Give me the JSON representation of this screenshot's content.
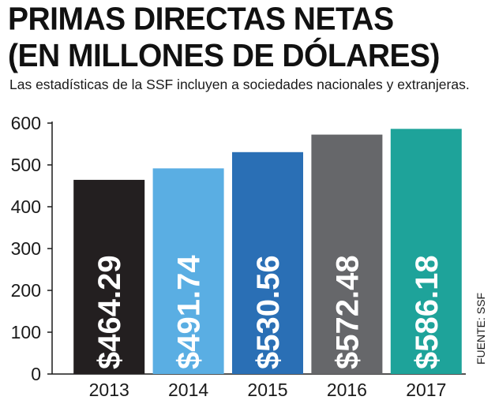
{
  "chart_data": {
    "type": "bar",
    "title_line1": "PRIMAS DIRECTAS NETAS",
    "title_line2": "(EN MILLONES DE DÓLARES)",
    "subtitle": "Las estadísticas de la SSF incluyen a sociedades nacionales y extranjeras.",
    "categories": [
      "2013",
      "2014",
      "2015",
      "2016",
      "2017"
    ],
    "values": [
      464.29,
      491.74,
      530.56,
      572.48,
      586.18
    ],
    "value_labels": [
      "$464.29",
      "$491.74",
      "$530.56",
      "$572.48",
      "$586.18"
    ],
    "colors": [
      "#231f20",
      "#5aaee3",
      "#2a6fb5",
      "#66676a",
      "#1ea39a"
    ],
    "ylim": [
      0,
      600
    ],
    "yticks": [
      "0",
      "100",
      "200",
      "300",
      "400",
      "500",
      "600"
    ],
    "xlabel": "",
    "ylabel": "",
    "source": "FUENTE: SSF",
    "grid": false,
    "legend": "none"
  }
}
